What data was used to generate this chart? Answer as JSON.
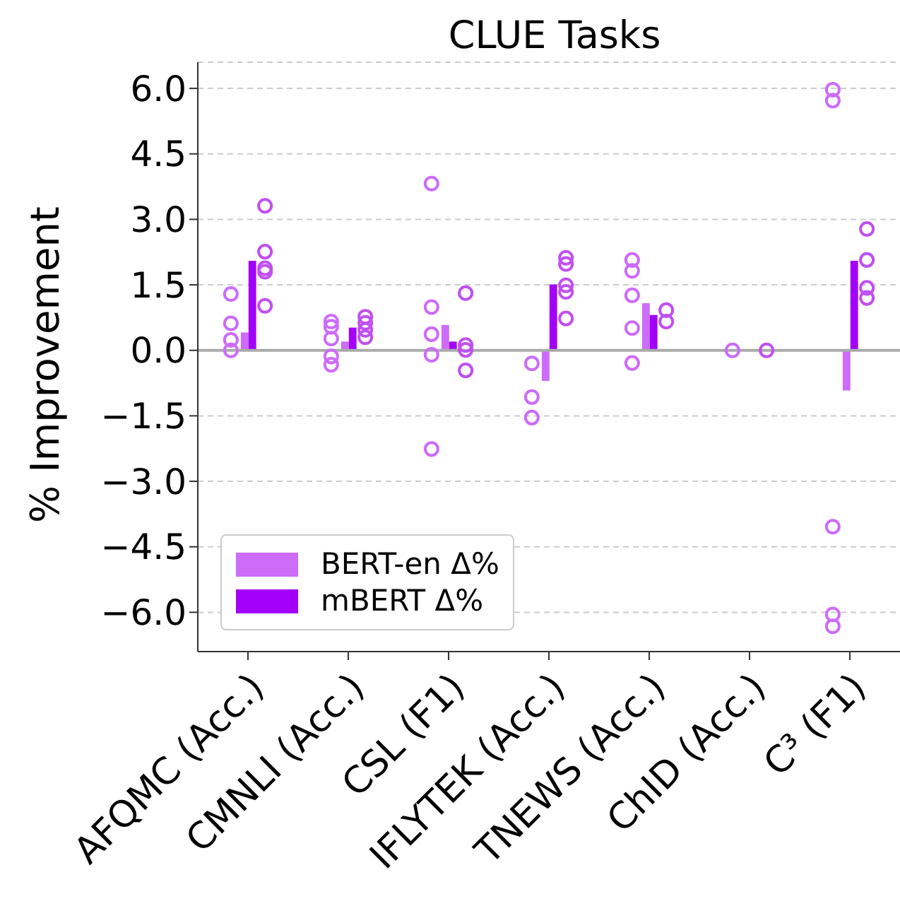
{
  "chart_data": {
    "type": "bar",
    "title": "CLUE Tasks",
    "ylabel": "% Improvement",
    "categories": [
      "AFQMC (Acc.)",
      "CMNLI (Acc.)",
      "CSL (F1)",
      "IFLYTEK (Acc.)",
      "TNEWS (Acc.)",
      "ChID (Acc.)",
      "C³ (F1)"
    ],
    "series": [
      {
        "name": "BERT-en Δ%",
        "color": "#cc6cf9",
        "values": [
          0.41,
          0.2,
          0.58,
          -0.7,
          1.08,
          0,
          -0.92
        ]
      },
      {
        "name": "mBERT Δ%",
        "color": "#a300f9",
        "values": [
          2.05,
          0.52,
          0.2,
          1.51,
          0.81,
          0,
          2.05
        ]
      },
      {
        "type": "scatter",
        "marker": "circle",
        "color": "#cc6cf9",
        "x": [
          "AFQMC (Acc.)",
          "AFQMC (Acc.)",
          "AFQMC (Acc.)",
          "AFQMC (Acc.)",
          "CMNLI (Acc.)",
          "CMNLI (Acc.)",
          "CMNLI (Acc.)",
          "CMNLI (Acc.)",
          "CMNLI (Acc.)",
          "CSL (F1)",
          "CSL (F1)",
          "CSL (F1)",
          "CSL (F1)",
          "CSL (F1)",
          "IFLYTEK (Acc.)",
          "IFLYTEK (Acc.)",
          "IFLYTEK (Acc.)",
          "TNEWS (Acc.)",
          "TNEWS (Acc.)",
          "TNEWS (Acc.)",
          "TNEWS (Acc.)",
          "TNEWS (Acc.)",
          "ChID (Acc.)",
          "C³ (F1)",
          "C³ (F1)",
          "C³ (F1)",
          "C³ (F1)",
          "C³ (F1)"
        ],
        "values": [
          1.29,
          0.62,
          0.24,
          0,
          0.66,
          0.54,
          0.27,
          -0.14,
          -0.33,
          3.82,
          0.99,
          0.37,
          -0.1,
          -2.26,
          -0.3,
          -1.07,
          -1.54,
          2.07,
          1.82,
          1.26,
          0.51,
          -0.29,
          0,
          5.97,
          5.72,
          -4.04,
          -6.05,
          -6.32
        ]
      },
      {
        "type": "scatter",
        "marker": "circle",
        "color": "#c050f0",
        "x": [
          "AFQMC (Acc.)",
          "AFQMC (Acc.)",
          "AFQMC (Acc.)",
          "AFQMC (Acc.)",
          "AFQMC (Acc.)",
          "CMNLI (Acc.)",
          "CMNLI (Acc.)",
          "CMNLI (Acc.)",
          "CMNLI (Acc.)",
          "CSL (F1)",
          "CSL (F1)",
          "CSL (F1)",
          "CSL (F1)",
          "IFLYTEK (Acc.)",
          "IFLYTEK (Acc.)",
          "IFLYTEK (Acc.)",
          "IFLYTEK (Acc.)",
          "IFLYTEK (Acc.)",
          "TNEWS (Acc.)",
          "TNEWS (Acc.)",
          "ChID (Acc.)",
          "C³ (F1)",
          "C³ (F1)",
          "C³ (F1)",
          "C³ (F1)"
        ],
        "values": [
          3.31,
          2.26,
          1.88,
          1.8,
          1.02,
          0.77,
          0.63,
          0.47,
          0.3,
          1.31,
          0.12,
          0.01,
          -0.46,
          2.12,
          1.98,
          1.49,
          1.34,
          0.73,
          0.92,
          0.66,
          0,
          2.78,
          2.07,
          1.43,
          1.2
        ]
      }
    ],
    "ylim": [
      -6.9,
      6.6
    ],
    "yticks": [
      {
        "value": -6,
        "label": "−6.0"
      },
      {
        "value": -4.5,
        "label": "−4.5"
      },
      {
        "value": -3,
        "label": "−3.0"
      },
      {
        "value": -1.5,
        "label": "−1.5"
      },
      {
        "value": 0,
        "label": "0.0"
      },
      {
        "value": 1.5,
        "label": "1.5"
      },
      {
        "value": 3,
        "label": "3.0"
      },
      {
        "value": 4.5,
        "label": "4.5"
      },
      {
        "value": 6,
        "label": "6.0"
      }
    ],
    "ref_lines": [
      {
        "axis": "y",
        "value": 0,
        "label": null,
        "color": "#aaaaaa"
      }
    ],
    "grid": "y",
    "legend": "bottom left"
  }
}
